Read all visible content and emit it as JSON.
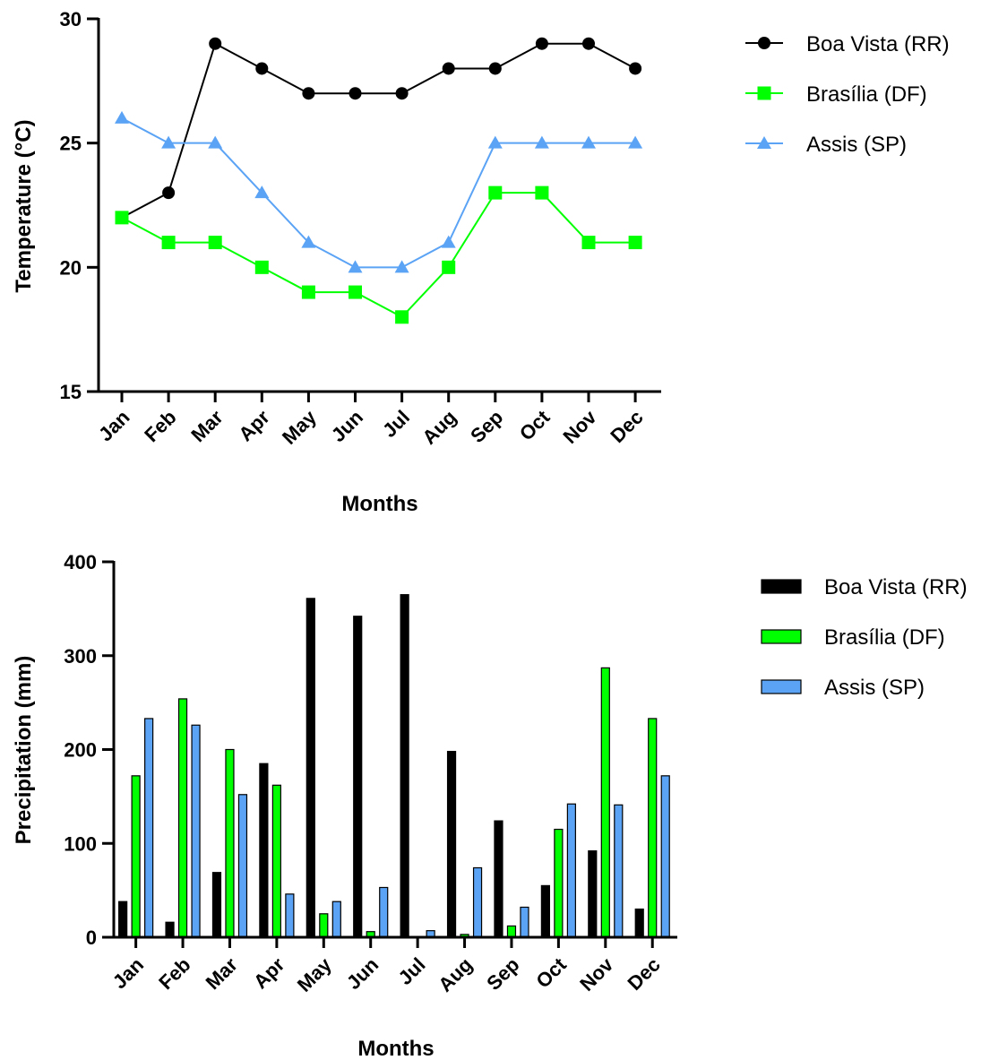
{
  "colors": {
    "boa_vista": "#000000",
    "brasilia": "#00ff00",
    "assis": "#5ba3f5",
    "axis": "#000000"
  },
  "chart_data": [
    {
      "type": "line",
      "categories": [
        "Jan",
        "Feb",
        "Mar",
        "Apr",
        "May",
        "Jun",
        "Jul",
        "Aug",
        "Sep",
        "Oct",
        "Nov",
        "Dec"
      ],
      "xlabel": "Months",
      "ylabel": "Temperature (°C)",
      "ylim": [
        15,
        30
      ],
      "yticks": [
        15,
        20,
        25,
        30
      ],
      "grid": false,
      "legend_position": "right",
      "series": [
        {
          "name": "Boa Vista (RR)",
          "marker": "circle",
          "color": "#000000",
          "values": [
            22,
            23,
            29,
            28,
            27,
            27,
            27,
            28,
            28,
            29,
            29,
            28
          ]
        },
        {
          "name": "Brasília (DF)",
          "marker": "square",
          "color": "#00ff00",
          "values": [
            22,
            21,
            21,
            20,
            19,
            19,
            18,
            20,
            23,
            23,
            21,
            21
          ]
        },
        {
          "name": "Assis (SP)",
          "marker": "triangle",
          "color": "#5ba3f5",
          "values": [
            26,
            25,
            25,
            23,
            21,
            20,
            20,
            21,
            25,
            25,
            25,
            25
          ]
        }
      ]
    },
    {
      "type": "bar",
      "categories": [
        "Jan",
        "Feb",
        "Mar",
        "Apr",
        "May",
        "Jun",
        "Jul",
        "Aug",
        "Sep",
        "Oct",
        "Nov",
        "Dec"
      ],
      "xlabel": "Months",
      "ylabel": "Precipitation (mm)",
      "ylim": [
        0,
        400
      ],
      "yticks": [
        0,
        100,
        200,
        300,
        400
      ],
      "grid": false,
      "legend_position": "right",
      "series": [
        {
          "name": "Boa Vista (RR)",
          "color": "#000000",
          "values": [
            38,
            16,
            69,
            185,
            361,
            342,
            365,
            198,
            124,
            55,
            92,
            30
          ]
        },
        {
          "name": "Brasília (DF)",
          "color": "#00ff00",
          "values": [
            172,
            254,
            200,
            162,
            25,
            6,
            0,
            3,
            12,
            115,
            287,
            233
          ]
        },
        {
          "name": "Assis (SP)",
          "color": "#5ba3f5",
          "values": [
            233,
            226,
            152,
            46,
            38,
            53,
            7,
            74,
            32,
            142,
            141,
            172
          ]
        }
      ]
    }
  ]
}
